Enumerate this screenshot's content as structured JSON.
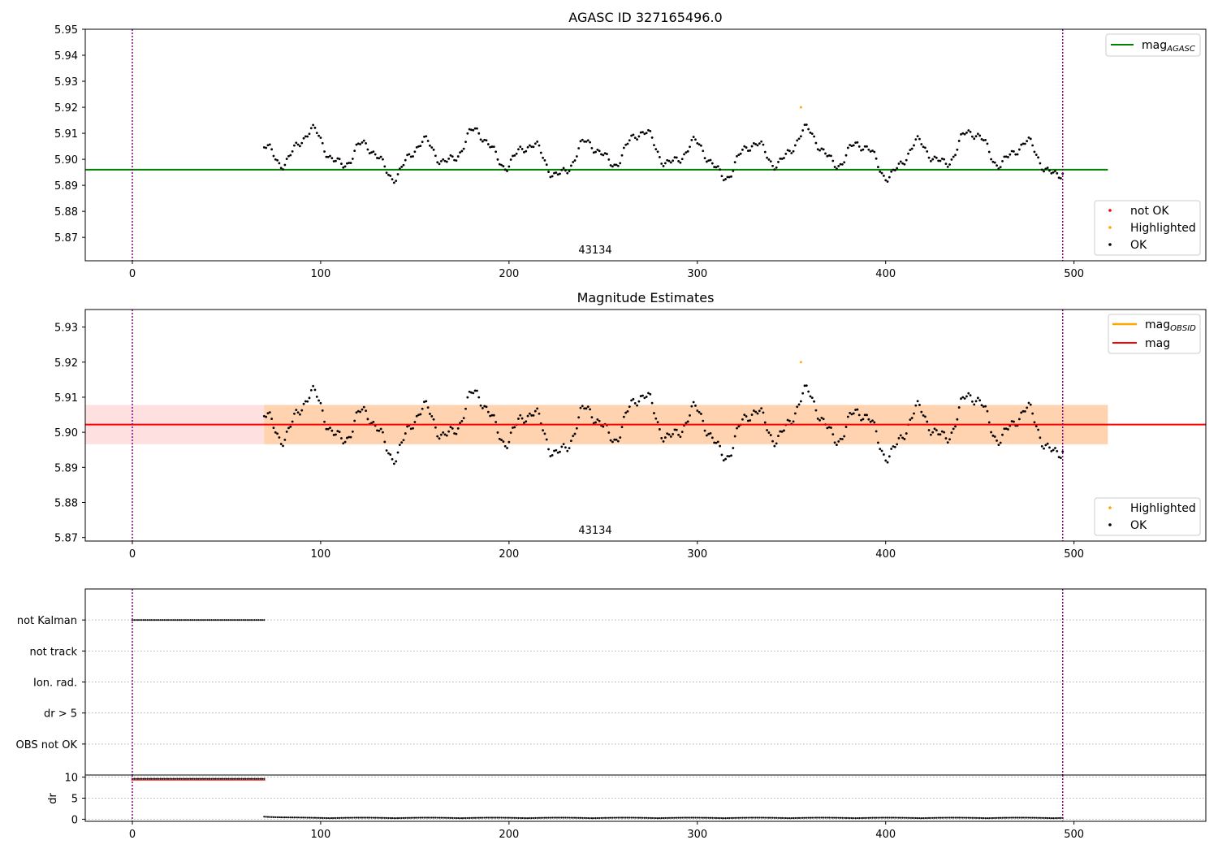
{
  "chart_data": [
    {
      "type": "scatter",
      "title": "AGASC ID 327165496.0",
      "xlim": [
        -25,
        570
      ],
      "ylim": [
        5.861,
        5.95
      ],
      "xticks": [
        0,
        100,
        200,
        300,
        400,
        500
      ],
      "yticks": [
        5.87,
        5.88,
        5.89,
        5.9,
        5.91,
        5.92,
        5.93,
        5.94,
        5.95
      ],
      "annotation": {
        "text": "43134",
        "x": 247
      },
      "vlines": [
        0,
        494
      ],
      "lines": [
        {
          "name": "mag_AGASC",
          "y": 5.896,
          "x": [
            -25,
            518
          ],
          "color": "#008000"
        }
      ],
      "ok_range": [
        70,
        494
      ],
      "highlight": {
        "x": 355,
        "y": 5.92
      },
      "legend_top": [
        {
          "label": "mag",
          "sub": "AGASC",
          "color": "#008000"
        }
      ],
      "legend_bottom": [
        {
          "label": "not OK",
          "color": "#ff0000"
        },
        {
          "label": "Highlighted",
          "color": "#ffa500"
        },
        {
          "label": "OK",
          "color": "#000000"
        }
      ],
      "grid": false
    },
    {
      "type": "scatter",
      "title": "Magnitude Estimates",
      "xlim": [
        -25,
        570
      ],
      "ylim": [
        5.869,
        5.935
      ],
      "xticks": [
        0,
        100,
        200,
        300,
        400,
        500
      ],
      "yticks": [
        5.87,
        5.88,
        5.89,
        5.9,
        5.91,
        5.92,
        5.93
      ],
      "annotation": {
        "text": "43134",
        "x": 247
      },
      "vlines": [
        0,
        494
      ],
      "mag": 5.9022,
      "band": [
        5.8966,
        5.9078
      ],
      "band_x_obsid": [
        70,
        518
      ],
      "ok_range": [
        70,
        494
      ],
      "highlight": {
        "x": 355,
        "y": 5.92
      },
      "legend_top": [
        {
          "label": "mag",
          "sub": "OBSID",
          "color": "#ffa500"
        },
        {
          "label": "mag",
          "sub": "",
          "color": "#ff0000"
        }
      ],
      "legend_bottom": [
        {
          "label": "Highlighted",
          "color": "#ffa500"
        },
        {
          "label": "OK",
          "color": "#000000"
        }
      ],
      "grid": false
    },
    {
      "type": "scatter",
      "xlim": [
        -25,
        570
      ],
      "categories": [
        "not Kalman",
        "not track",
        "Ion. rad.",
        "dr > 5",
        "OBS not OK"
      ],
      "flags": [
        {
          "category": "not Kalman",
          "x_range": [
            0,
            70
          ]
        }
      ],
      "vlines": [
        0,
        494
      ],
      "grid": true
    },
    {
      "type": "scatter",
      "xlim": [
        -25,
        570
      ],
      "ylim": [
        -0.5,
        10.5
      ],
      "ylabel": "dr",
      "xticks": [
        0,
        100,
        200,
        300,
        400,
        500
      ],
      "yticks": [
        0,
        5,
        10
      ],
      "dr_high": {
        "y": 9.6,
        "x_range": [
          0,
          70
        ],
        "color": "#ff0000"
      },
      "dr_low": {
        "x_range": [
          70,
          494
        ],
        "baseline": 0.25
      },
      "vlines": [
        0,
        494
      ],
      "grid": true
    }
  ]
}
